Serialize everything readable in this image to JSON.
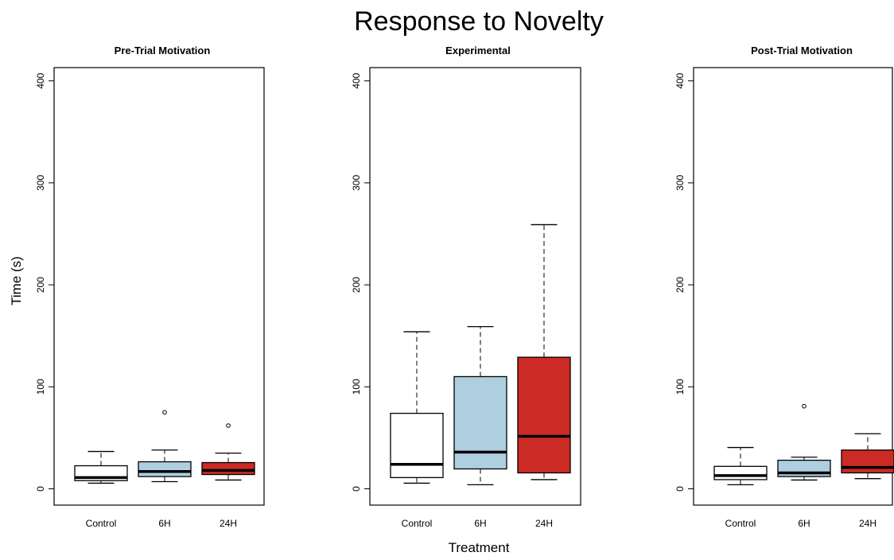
{
  "title": "Response to Novelty",
  "xlabel": "Treatment",
  "ylabel": "Time (s)",
  "chart_data": [
    {
      "type": "box",
      "title": "Pre-Trial Motivation",
      "categories": [
        "Control",
        "6H",
        "24H"
      ],
      "colors": [
        "#ffffff",
        "#aecfdf",
        "#cc2a24"
      ],
      "ylim": [
        -16,
        413
      ],
      "yticks": [
        0,
        100,
        200,
        300,
        400
      ],
      "boxes": [
        {
          "min": 5.5,
          "q1": 8,
          "median": 11,
          "q3": 22.6,
          "max": 36.6
        },
        {
          "min": 7,
          "q1": 12,
          "median": 17,
          "q3": 26.5,
          "max": 38,
          "outliers": [
            75
          ]
        },
        {
          "min": 8.6,
          "q1": 14,
          "median": 18,
          "q3": 25.7,
          "max": 35,
          "outliers": [
            62
          ]
        }
      ]
    },
    {
      "type": "box",
      "title": "Experimental",
      "categories": [
        "Control",
        "6H",
        "24H"
      ],
      "colors": [
        "#ffffff",
        "#aecfdf",
        "#cc2a24"
      ],
      "ylim": [
        -16,
        413
      ],
      "yticks": [
        0,
        100,
        200,
        300,
        400
      ],
      "boxes": [
        {
          "min": 5.5,
          "q1": 11,
          "median": 24,
          "q3": 74,
          "max": 154
        },
        {
          "min": 4,
          "q1": 19.5,
          "median": 36,
          "q3": 110,
          "max": 159
        },
        {
          "min": 9,
          "q1": 15.6,
          "median": 51.5,
          "q3": 129,
          "max": 259
        }
      ]
    },
    {
      "type": "box",
      "title": "Post-Trial Motivation",
      "categories": [
        "Control",
        "6H",
        "24H"
      ],
      "colors": [
        "#ffffff",
        "#aecfdf",
        "#cc2a24"
      ],
      "ylim": [
        -16,
        413
      ],
      "yticks": [
        0,
        100,
        200,
        300,
        400
      ],
      "boxes": [
        {
          "min": 4,
          "q1": 9,
          "median": 13,
          "q3": 22,
          "max": 40.5
        },
        {
          "min": 8.6,
          "q1": 12,
          "median": 15.6,
          "q3": 28,
          "max": 31,
          "outliers": [
            81
          ]
        },
        {
          "min": 10,
          "q1": 15.6,
          "median": 21,
          "q3": 38,
          "max": 54
        }
      ]
    }
  ]
}
